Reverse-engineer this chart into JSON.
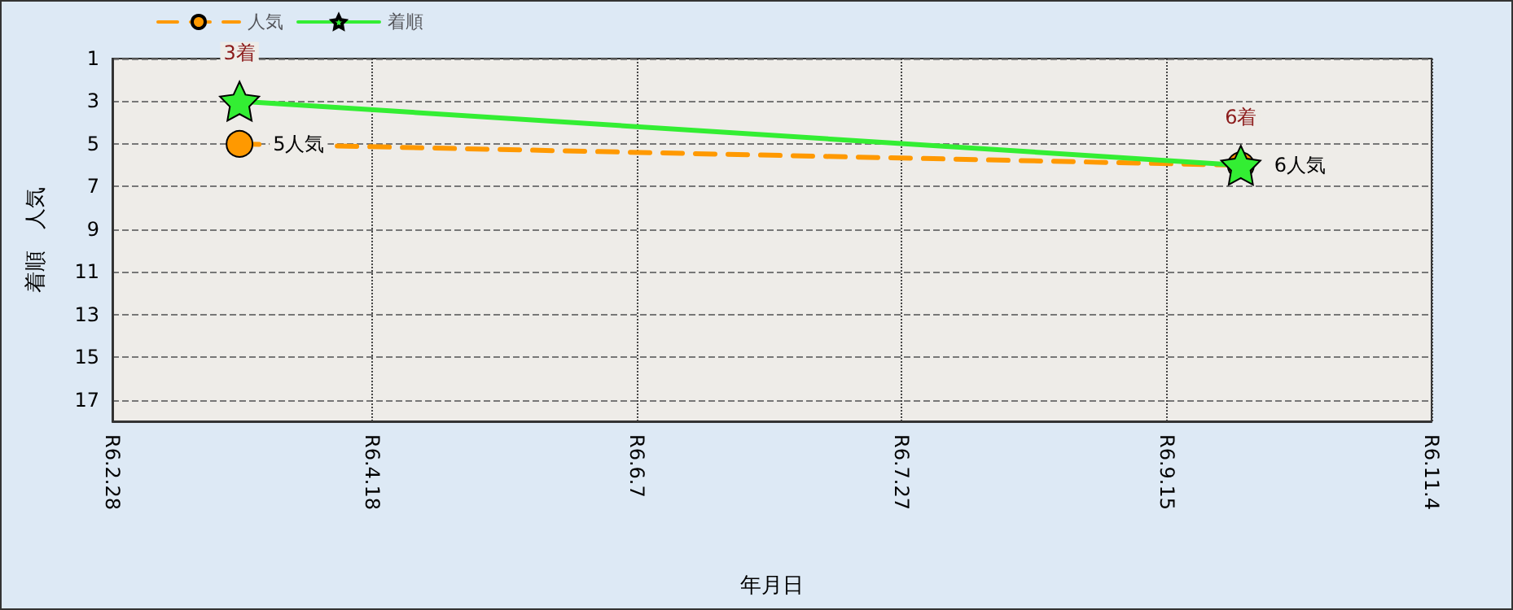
{
  "chart_data": {
    "type": "line",
    "xlabel": "年月日",
    "ylabel": "着順　人気",
    "x": [
      "--03-24",
      "--09-29"
    ],
    "series": [
      {
        "name": "人気",
        "color": "#ff9900",
        "values": [
          5,
          6
        ],
        "value_labels": [
          "5人気",
          "6人気"
        ],
        "marker": "circle",
        "line_style": "dashed"
      },
      {
        "name": "着順",
        "color": "#33ee33",
        "values": [
          3,
          6
        ],
        "value_labels": [
          "3着",
          "6着"
        ],
        "marker": "star",
        "line_style": "solid"
      }
    ],
    "xlim": [
      "--02-28",
      "--11-04"
    ],
    "xticks": [
      {
        "value": "--02-28",
        "label": "R6.2.28"
      },
      {
        "value": "--04-18",
        "label": "R6.4.18"
      },
      {
        "value": "--06-07",
        "label": "R6.6.7"
      },
      {
        "value": "--07-27",
        "label": "R6.7.27"
      },
      {
        "value": "--09-15",
        "label": "R6.9.15"
      },
      {
        "value": "--11-04",
        "label": "R6.11.4"
      }
    ],
    "ylim": [
      18,
      1
    ],
    "yticks": [
      1,
      3,
      5,
      7,
      9,
      11,
      13,
      15,
      17
    ],
    "grid": true,
    "legend": "top left"
  }
}
